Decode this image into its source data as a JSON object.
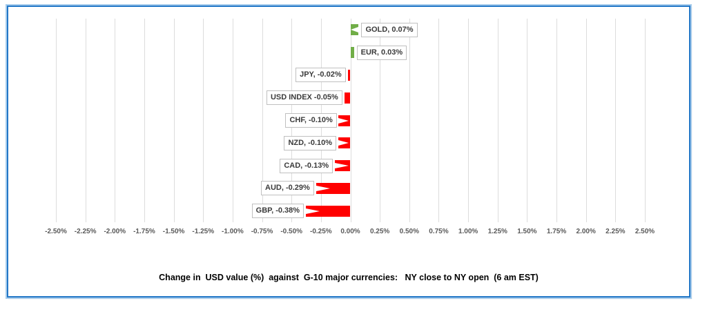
{
  "chart_data": {
    "type": "bar",
    "orientation": "horizontal",
    "title": "Change in  USD value (%)  against  G-10 major currencies:   NY close to NY open  (6 am EST)",
    "categories": [
      "GOLD",
      "EUR",
      "JPY",
      "USD INDEX",
      "CHF",
      "NZD",
      "CAD",
      "AUD",
      "GBP"
    ],
    "values": [
      0.07,
      0.03,
      -0.02,
      -0.05,
      -0.1,
      -0.1,
      -0.13,
      -0.29,
      -0.38
    ],
    "point_labels": [
      "GOLD, 0.07%",
      "EUR, 0.03%",
      "JPY, -0.02%",
      "USD INDEX -0.05%",
      "CHF, -0.10%",
      "NZD, -0.10%",
      "CAD, -0.13%",
      "AUD, -0.29%",
      "GBP, -0.38%"
    ],
    "xlabel": "",
    "ylabel": "",
    "xlim": [
      -2.5,
      2.5
    ],
    "tick_step": 0.25,
    "tick_labels": [
      "-2.50%",
      "-2.25%",
      "-2.00%",
      "-1.75%",
      "-1.50%",
      "-1.25%",
      "-1.00%",
      "-0.75%",
      "-0.50%",
      "-0.25%",
      "0.00%",
      "0.25%",
      "0.50%",
      "0.75%",
      "1.00%",
      "1.25%",
      "1.50%",
      "1.75%",
      "2.00%",
      "2.25%",
      "2.50%"
    ],
    "grid": true,
    "legend": "none",
    "colors": {
      "positive_bar": "#70AD47",
      "negative_bar": "#FF0000",
      "gridline": "#DCDCDC",
      "tick_text": "#595959",
      "label_text": "#3A3A3A",
      "label_border": "#BFBFBF",
      "frame_border": "#2E75B6"
    }
  }
}
